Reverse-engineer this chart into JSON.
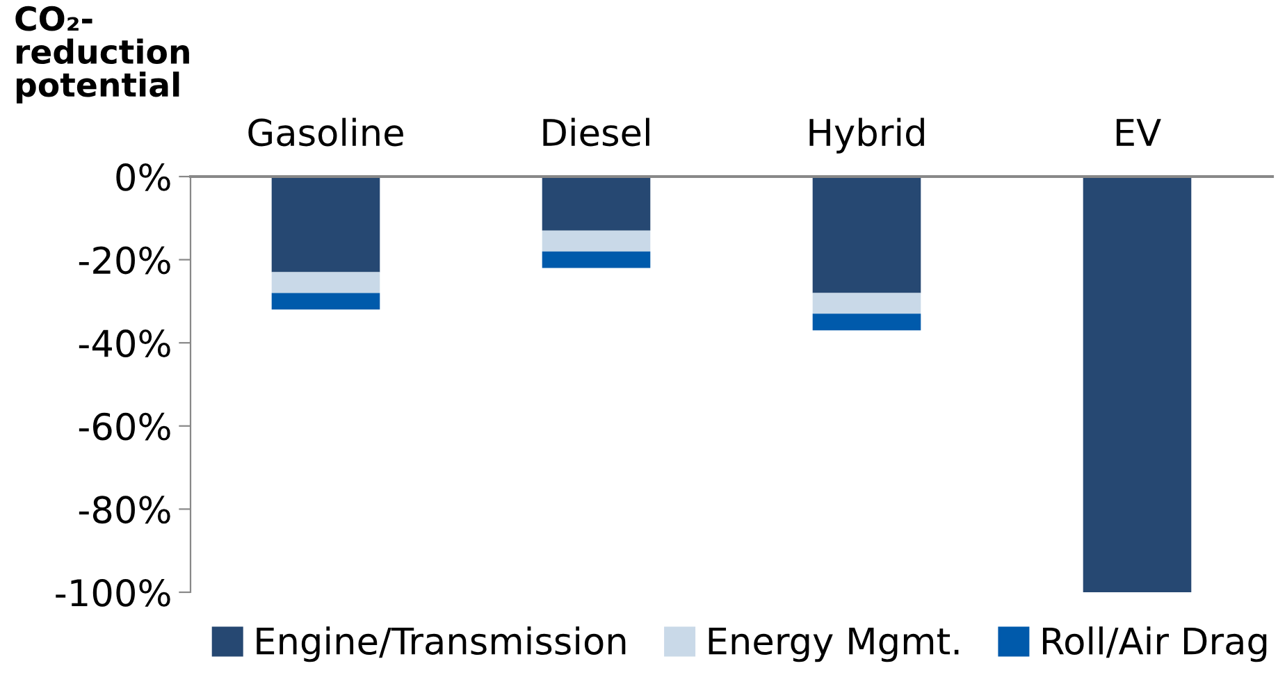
{
  "chart_data": {
    "type": "bar",
    "stacked": true,
    "ylabel": "CO₂-\nreduction\npotential",
    "categories": [
      "Gasoline",
      "Diesel",
      "Hybrid",
      "EV"
    ],
    "series": [
      {
        "name": "Engine/Transmission",
        "color": "#264872",
        "values": [
          -23,
          -13,
          -28,
          -100
        ]
      },
      {
        "name": "Energy Mgmt.",
        "color": "#c9d9e8",
        "values": [
          -5,
          -5,
          -5,
          0
        ]
      },
      {
        "name": "Roll/Air Drag",
        "color": "#005aab",
        "values": [
          -4,
          -4,
          -4,
          0
        ]
      }
    ],
    "ylim": [
      -100,
      0
    ],
    "yticks": [
      {
        "value": 0,
        "label": "0%"
      },
      {
        "value": -20,
        "label": "-20%"
      },
      {
        "value": -40,
        "label": "-40%"
      },
      {
        "value": -60,
        "label": "-60%"
      },
      {
        "value": -80,
        "label": "-80%"
      },
      {
        "value": -100,
        "label": "-100%"
      }
    ],
    "grid": false,
    "legend": "bottom"
  }
}
